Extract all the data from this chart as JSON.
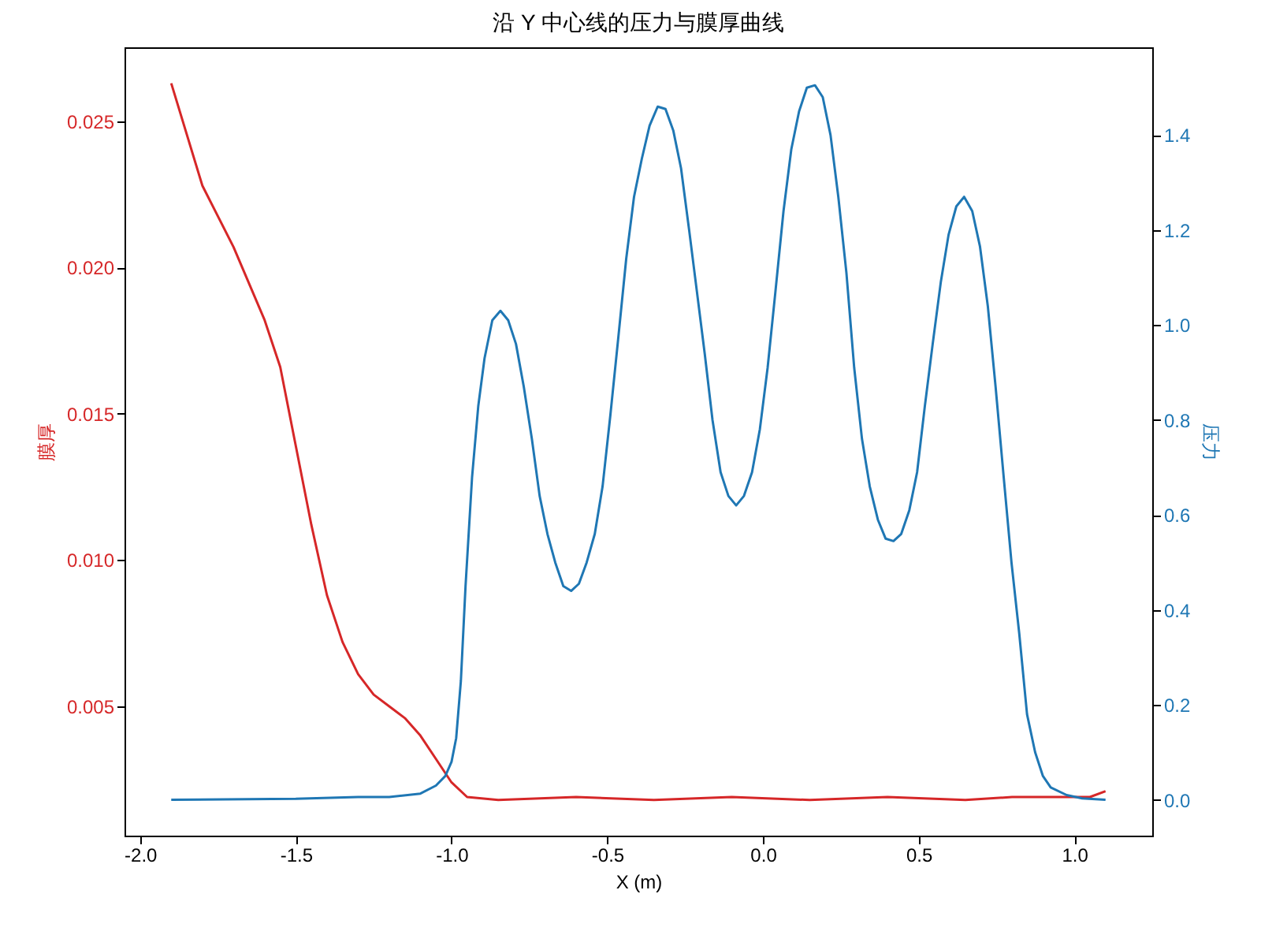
{
  "chart_data": {
    "type": "line",
    "title": "沿 Y 中心线的压力与膜厚曲线",
    "xlabel": "X (m)",
    "ylabel": "膜厚",
    "y2label": "压力",
    "xlim": [
      -2.05,
      1.25
    ],
    "xticks": [
      {
        "value": -2,
        "label": "-2.0"
      },
      {
        "value": -1.5,
        "label": "-1.5"
      },
      {
        "value": -1,
        "label": "-1.0"
      },
      {
        "value": -0.5,
        "label": "-0.5"
      },
      {
        "value": 0,
        "label": "0.0"
      },
      {
        "value": 0.5,
        "label": "0.5"
      },
      {
        "value": 1,
        "label": "1.0"
      }
    ],
    "ylim": [
      0.00058,
      0.02753
    ],
    "yticks": [
      0.005,
      {
        "value": 0.01,
        "label": "0.010"
      },
      {
        "value": 0.015,
        "label": "0.015"
      },
      {
        "value": 0.02,
        "label": "0.020"
      },
      0.025
    ],
    "y2lim": [
      -0.0755,
      1.585
    ],
    "y2ticks": [
      {
        "value": 0,
        "label": "0.0"
      },
      {
        "value": 0.2,
        "label": "0.2"
      },
      {
        "value": 0.4,
        "label": "0.4"
      },
      {
        "value": 0.6,
        "label": "0.6"
      },
      {
        "value": 0.8,
        "label": "0.8"
      },
      {
        "value": 1,
        "label": "1.0"
      },
      {
        "value": 1.2,
        "label": "1.2"
      },
      {
        "value": 1.4,
        "label": "1.4"
      }
    ],
    "grid": false,
    "series": [
      {
        "color": "#d62728",
        "x": [
          -1.9,
          -1.8,
          -1.7,
          -1.6,
          -1.55,
          -1.5,
          -1.45,
          -1.4,
          -1.35,
          -1.3,
          -1.25,
          -1.2,
          -1.15,
          -1.1,
          -1.05,
          -1.0,
          -0.95,
          -0.85,
          -0.6,
          -0.35,
          -0.1,
          0.15,
          0.4,
          0.65,
          0.8,
          0.85,
          0.95,
          1.05,
          1.1
        ],
        "values": [
          0.0263,
          0.0228,
          0.0207,
          0.0182,
          0.0166,
          0.0139,
          0.0112,
          0.0088,
          0.0072,
          0.0061,
          0.0054,
          0.005,
          0.0046,
          0.004,
          0.0032,
          0.0024,
          0.0019,
          0.0018,
          0.0019,
          0.0018,
          0.0019,
          0.0018,
          0.0019,
          0.0018,
          0.0019,
          0.0019,
          0.0019,
          0.0019,
          0.0021
        ]
      },
      {
        "color": "#1f77b4",
        "axis": "y2",
        "x": [
          -1.9,
          -1.5,
          -1.3,
          -1.2,
          -1.1,
          -1.05,
          -1.02,
          -1.0,
          -0.985,
          -0.97,
          -0.955,
          -0.934,
          -0.914,
          -0.894,
          -0.869,
          -0.843,
          -0.818,
          -0.793,
          -0.768,
          -0.742,
          -0.717,
          -0.692,
          -0.667,
          -0.641,
          -0.616,
          -0.591,
          -0.566,
          -0.54,
          -0.515,
          -0.49,
          -0.465,
          -0.439,
          -0.414,
          -0.389,
          -0.364,
          -0.338,
          -0.313,
          -0.288,
          -0.263,
          -0.237,
          -0.212,
          -0.187,
          -0.162,
          -0.136,
          -0.111,
          -0.086,
          -0.061,
          -0.035,
          -0.01,
          0.015,
          0.04,
          0.066,
          0.091,
          0.116,
          0.141,
          0.167,
          0.192,
          0.217,
          0.242,
          0.268,
          0.293,
          0.318,
          0.343,
          0.369,
          0.394,
          0.419,
          0.444,
          0.47,
          0.495,
          0.52,
          0.545,
          0.571,
          0.596,
          0.621,
          0.646,
          0.672,
          0.697,
          0.722,
          0.747,
          0.773,
          0.798,
          0.823,
          0.848,
          0.874,
          0.899,
          0.924,
          0.975,
          1.025,
          1.1
        ],
        "values": [
          0,
          0.002,
          0.006,
          0.006,
          0.013,
          0.03,
          0.05,
          0.08,
          0.13,
          0.25,
          0.45,
          0.68,
          0.83,
          0.93,
          1.01,
          1.03,
          1.01,
          0.96,
          0.87,
          0.76,
          0.64,
          0.56,
          0.5,
          0.45,
          0.44,
          0.455,
          0.5,
          0.56,
          0.66,
          0.81,
          0.97,
          1.14,
          1.27,
          1.35,
          1.42,
          1.46,
          1.455,
          1.41,
          1.33,
          1.2,
          1.07,
          0.94,
          0.8,
          0.69,
          0.64,
          0.62,
          0.64,
          0.69,
          0.78,
          0.91,
          1.07,
          1.24,
          1.37,
          1.45,
          1.5,
          1.505,
          1.48,
          1.4,
          1.27,
          1.11,
          0.91,
          0.76,
          0.66,
          0.59,
          0.55,
          0.545,
          0.56,
          0.61,
          0.69,
          0.83,
          0.96,
          1.09,
          1.19,
          1.25,
          1.27,
          1.24,
          1.165,
          1.04,
          0.87,
          0.68,
          0.5,
          0.35,
          0.18,
          0.1,
          0.05,
          0.026,
          0.01,
          0.003,
          0
        ]
      }
    ]
  }
}
